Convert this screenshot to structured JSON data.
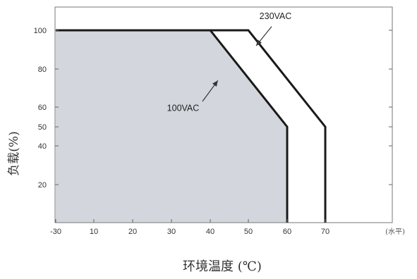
{
  "chart_data": {
    "type": "area",
    "xlabel": "环境温度 (℃)",
    "ylabel": "负载(%)",
    "x_note": "(水平)",
    "xlim": [
      -30,
      80
    ],
    "ylim": [
      0,
      110
    ],
    "x_ticks": [
      -30,
      10,
      20,
      30,
      40,
      50,
      60,
      70
    ],
    "x_tick_labels": [
      "-30",
      "10",
      "20",
      "30",
      "40",
      "50",
      "60",
      "70"
    ],
    "y_ticks": [
      20,
      40,
      50,
      60,
      80,
      100
    ],
    "y_tick_labels": [
      "20",
      "40",
      "50",
      "60",
      "80",
      "100"
    ],
    "grid": false,
    "series": [
      {
        "name": "100VAC",
        "x": [
          -30,
          40,
          60,
          60
        ],
        "y": [
          100,
          100,
          50,
          0
        ],
        "fill": "#d3d6dc"
      },
      {
        "name": "230VAC",
        "x": [
          -30,
          50,
          70,
          70
        ],
        "y": [
          100,
          100,
          50,
          0
        ],
        "fill": "#ffffff"
      }
    ],
    "annotations": [
      {
        "label": "230VAC",
        "text_at": [
          57,
          106
        ],
        "arrow_from": [
          56,
          102
        ],
        "arrow_to": [
          52,
          92
        ]
      },
      {
        "label": "100VAC",
        "text_at": [
          33,
          58
        ],
        "arrow_from": [
          38,
          63
        ],
        "arrow_to": [
          42,
          74
        ]
      }
    ]
  }
}
